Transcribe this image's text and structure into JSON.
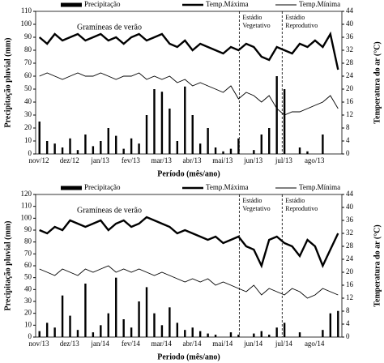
{
  "chart_data": [
    {
      "type": "combo",
      "annotation": "Gramíneas de verão",
      "stage_labels": [
        [
          "Estádio",
          "Vegetativo"
        ],
        [
          "Estádio",
          "Reprodutivo"
        ]
      ],
      "x_label": "Período (mês/ano)",
      "y_label": "Precipitação pluvial (mm)",
      "y2_label": "Temperatura do ar (°C)",
      "categories": [
        "nov/12",
        null,
        null,
        null,
        "dez/12",
        null,
        null,
        null,
        "jan/13",
        null,
        null,
        null,
        "fev/13",
        null,
        null,
        null,
        "mar/13",
        null,
        null,
        null,
        "abr/13",
        null,
        null,
        null,
        "mai/13",
        null,
        null,
        null,
        "jun/13",
        null,
        null,
        null,
        "jul/13",
        null,
        null,
        null,
        "ago/13",
        null,
        null,
        null
      ],
      "ylim": [
        0,
        110
      ],
      "yticks": [
        0,
        10,
        20,
        30,
        40,
        50,
        60,
        70,
        80,
        90,
        100,
        110
      ],
      "y2lim": [
        0,
        44
      ],
      "y2ticks": [
        0,
        4,
        8,
        12,
        16,
        20,
        24,
        28,
        32,
        36,
        40,
        44
      ],
      "series": [
        {
          "name": "Precipitação",
          "type": "bar",
          "color": "#000000",
          "values": [
            25,
            10,
            8,
            5,
            12,
            3,
            15,
            6,
            10,
            20,
            14,
            4,
            12,
            8,
            30,
            50,
            48,
            35,
            10,
            52,
            30,
            8,
            20,
            5,
            2,
            4,
            12,
            0,
            3,
            15,
            20,
            60,
            50,
            0,
            5,
            2,
            0,
            15,
            0,
            0
          ]
        },
        {
          "name": "Temp.Máxima",
          "type": "line",
          "axis": "y2",
          "color": "#000000",
          "values": [
            36,
            34,
            37,
            35,
            36,
            37,
            35,
            36,
            37,
            35,
            36,
            34,
            36,
            37,
            35,
            36,
            37,
            34,
            33,
            35,
            32,
            34,
            33,
            32,
            31,
            33,
            32,
            34,
            33,
            30,
            29,
            33,
            32,
            31,
            34,
            33,
            35,
            33,
            37,
            26
          ]
        },
        {
          "name": "Temp.Mínima",
          "type": "line",
          "axis": "y2",
          "color": "#000000",
          "values": [
            24,
            25,
            24,
            23,
            24,
            25,
            24,
            24,
            25,
            24,
            23,
            24,
            24,
            25,
            23,
            24,
            23,
            24,
            22,
            23,
            21,
            22,
            21,
            20,
            19,
            21,
            17,
            19,
            18,
            16,
            18,
            14,
            12,
            13,
            13,
            14,
            15,
            16,
            18,
            14
          ]
        }
      ]
    },
    {
      "type": "combo",
      "annotation": "Gramíneas de verão",
      "stage_labels": [
        [
          "Estádio",
          "Vegetativo"
        ],
        [
          "Estádio",
          "Reprodutivo"
        ]
      ],
      "x_label": "Periodo (mês/ano)",
      "y_label": "Precipitação pluvial (mm)",
      "y2_label": "Temperatura do ar (°C)",
      "categories": [
        "nov/13",
        null,
        null,
        null,
        "dez/13",
        null,
        null,
        null,
        "jan/14",
        null,
        null,
        null,
        "fev/14",
        null,
        null,
        null,
        "mar/14",
        null,
        null,
        null,
        "abr/14",
        null,
        null,
        null,
        "mai/14",
        null,
        null,
        null,
        "jun/14",
        null,
        null,
        null,
        "jul/14",
        null,
        null,
        null,
        "ago/14",
        null,
        null,
        null
      ],
      "ylim": [
        0,
        120
      ],
      "yticks": [
        0,
        10,
        20,
        30,
        40,
        50,
        60,
        70,
        80,
        90,
        100,
        110,
        120
      ],
      "y2lim": [
        0,
        44
      ],
      "y2ticks": [
        0,
        4,
        8,
        12,
        16,
        20,
        24,
        28,
        32,
        36,
        40,
        44
      ],
      "series": [
        {
          "name": "Precipitação",
          "type": "bar",
          "color": "#000000",
          "values": [
            5,
            12,
            8,
            35,
            18,
            6,
            45,
            4,
            10,
            20,
            50,
            15,
            8,
            30,
            42,
            20,
            10,
            25,
            12,
            6,
            8,
            5,
            3,
            2,
            0,
            4,
            2,
            0,
            3,
            5,
            2,
            8,
            12,
            0,
            4,
            0,
            0,
            6,
            20,
            22
          ]
        },
        {
          "name": "Temp.Máxima",
          "type": "line",
          "axis": "y2",
          "color": "#000000",
          "values": [
            33,
            32,
            34,
            33,
            36,
            35,
            34,
            35,
            36,
            33,
            35,
            36,
            34,
            35,
            37,
            36,
            35,
            34,
            32,
            33,
            32,
            31,
            30,
            31,
            29,
            30,
            31,
            28,
            27,
            22,
            30,
            31,
            29,
            28,
            25,
            30,
            28,
            22,
            27,
            32
          ]
        },
        {
          "name": "Temp.Mínima",
          "type": "line",
          "axis": "y2",
          "color": "#000000",
          "values": [
            21,
            20,
            19,
            21,
            20,
            19,
            21,
            20,
            21,
            22,
            20,
            21,
            20,
            21,
            20,
            19,
            20,
            19,
            18,
            17,
            18,
            17,
            18,
            16,
            17,
            16,
            15,
            14,
            16,
            13,
            15,
            14,
            13,
            15,
            14,
            12,
            13,
            15,
            14,
            13
          ]
        }
      ]
    }
  ]
}
